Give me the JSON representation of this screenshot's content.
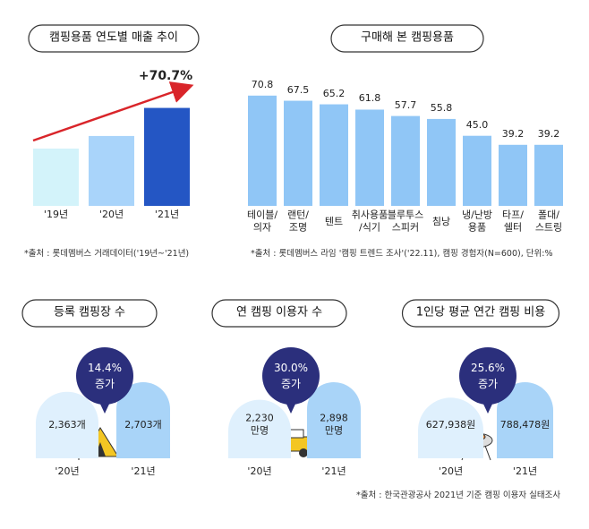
{
  "chart_data": [
    {
      "type": "bar",
      "title": "캠핑용품 연도별 매출 추이",
      "categories": [
        "'19년",
        "'20년",
        "'21년"
      ],
      "values": [
        100,
        122,
        171
      ],
      "colors": [
        "#d3f3fa",
        "#a9d4fa",
        "#2456c4"
      ],
      "annotation": "+70.7%",
      "source": "*출처 : 롯데멤버스 거래데이터('19년~'21년)"
    },
    {
      "type": "bar",
      "title": "구매해 본 캠핑용품",
      "categories": [
        "테이블/\n의자",
        "랜턴/\n조명",
        "텐트",
        "취사용품\n/식기",
        "블루투스\n스피커",
        "침낭",
        "냉/난방\n용품",
        "타프/\n쉘터",
        "폴대/\n스트링"
      ],
      "values": [
        70.8,
        67.5,
        65.2,
        61.8,
        57.7,
        55.8,
        45.0,
        39.2,
        39.2
      ],
      "value_labels": [
        "70.8",
        "67.5",
        "65.2",
        "61.8",
        "57.7",
        "55.8",
        "45.0",
        "39.2",
        "39.2"
      ],
      "color": "#90c6f6",
      "source": "*출처 : 롯데멤버스 라임 '캠핑 트렌드 조사'('22.11), 캠핑 경험자(N=600), 단위:%"
    },
    {
      "type": "arch",
      "title": "등록 캠핑장 수",
      "categories": [
        "'20년",
        "'21년"
      ],
      "values": [
        2363,
        2703
      ],
      "value_labels": [
        "2,363개",
        "2,703개"
      ],
      "colors": [
        "#dff0fd",
        "#a9d4f8"
      ],
      "change": "14.4%",
      "change_label": "증가"
    },
    {
      "type": "arch",
      "title": "연 캠핑 이용자 수",
      "categories": [
        "'20년",
        "'21년"
      ],
      "values": [
        2230,
        2898
      ],
      "value_labels": [
        "2,230\n만명",
        "2,898\n만명"
      ],
      "colors": [
        "#dff0fd",
        "#a9d4f8"
      ],
      "change": "30.0%",
      "change_label": "증가"
    },
    {
      "type": "arch",
      "title": "1인당 평균 연간 캠핑 비용",
      "categories": [
        "'20년",
        "'21년"
      ],
      "values": [
        627938,
        788478
      ],
      "value_labels": [
        "627,938원",
        "788,478원"
      ],
      "colors": [
        "#dff0fd",
        "#a9d4f8"
      ],
      "change": "25.6%",
      "change_label": "증가"
    }
  ],
  "source": "*출처 : 한국관광공사 2021년 기준 캠핑 이용자 실태조사"
}
